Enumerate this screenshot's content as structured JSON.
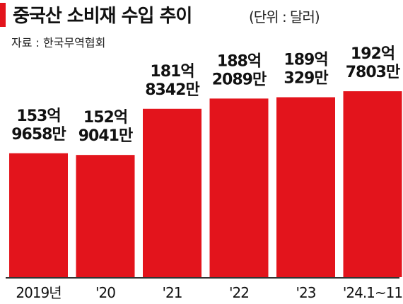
{
  "colors": {
    "bar": "#e3141c",
    "accent": "#e3141c",
    "axis": "#333333"
  },
  "chart_data": {
    "type": "bar",
    "title": "중국산 소비재 수입 추이",
    "unit": "(단위 : 달러)",
    "source": "자료 : 한국무역협회",
    "categories": [
      "2019년",
      "'20",
      "'21",
      "'22",
      "'23",
      "'24.1~11"
    ],
    "values": [
      15396580000,
      15290410000,
      18183420000,
      18820890000,
      18903290000,
      19278030000
    ],
    "value_labels": [
      [
        "153억",
        "9658만"
      ],
      [
        "152억",
        "9041만"
      ],
      [
        "181억",
        "8342만"
      ],
      [
        "188억",
        "2089만"
      ],
      [
        "189억",
        "329만"
      ],
      [
        "192억",
        "7803만"
      ]
    ],
    "grid": false,
    "legend": "none"
  }
}
